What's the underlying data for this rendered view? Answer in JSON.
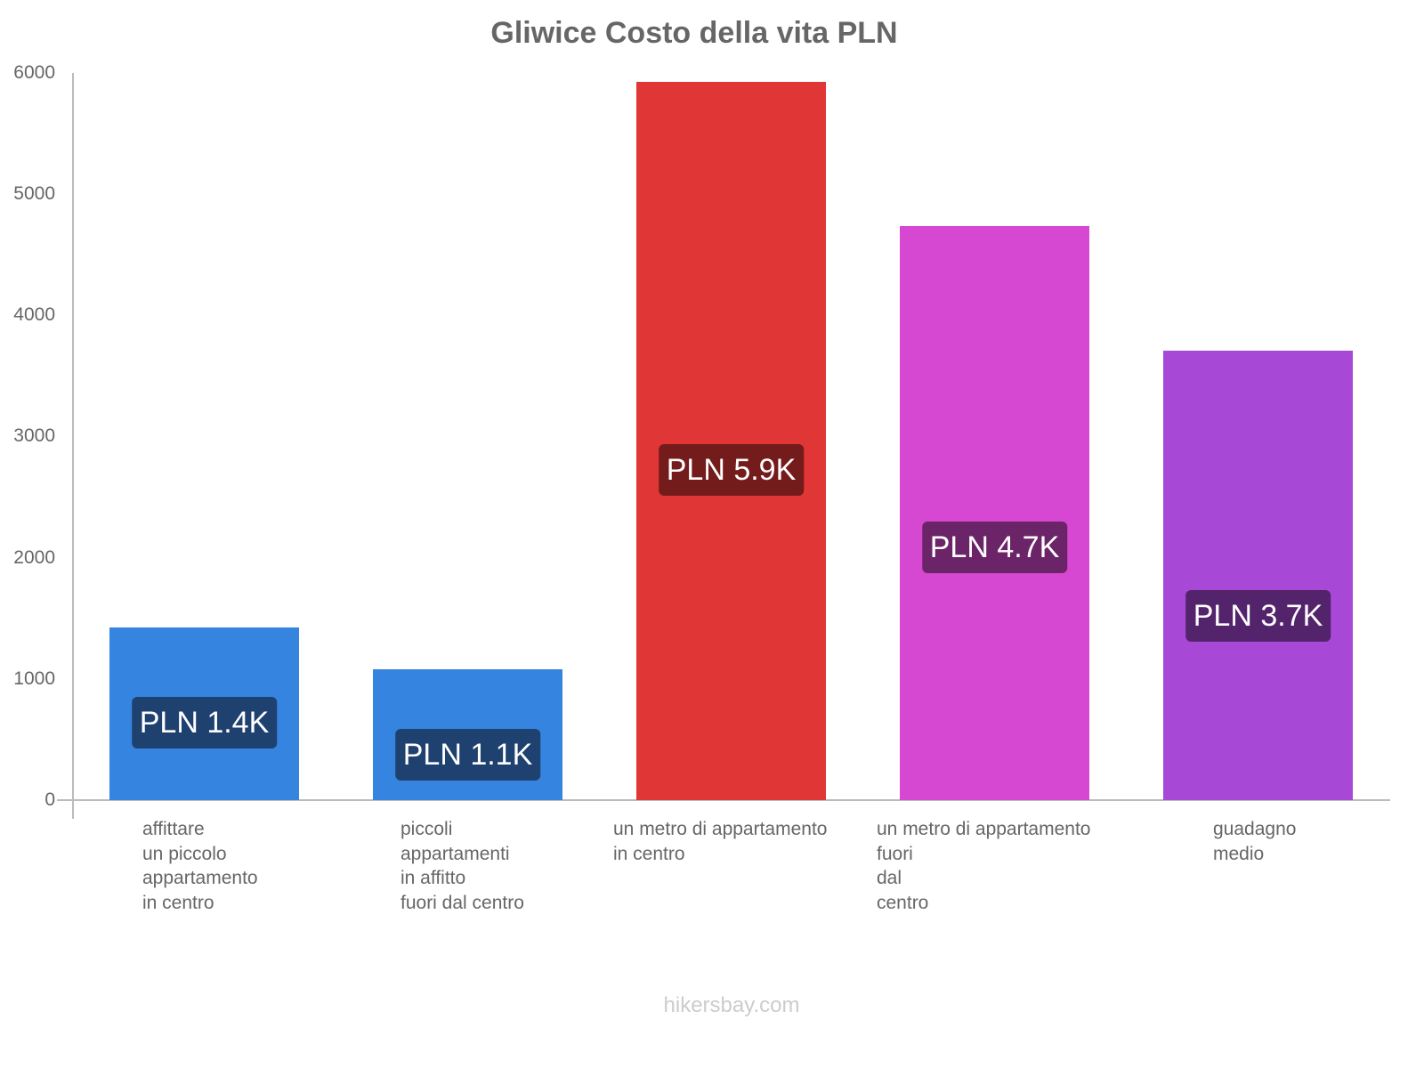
{
  "chart_data": {
    "type": "bar",
    "title": "Gliwice Costo della vita PLN",
    "xlabel": "",
    "ylabel": "",
    "ylim": [
      0,
      6000
    ],
    "yticks": [
      0,
      1000,
      2000,
      3000,
      4000,
      5000,
      6000
    ],
    "grid": false,
    "legend": null,
    "categories": [
      "affittare un piccolo appartamento in centro",
      "piccoli appartamenti in affitto fuori dal centro",
      "un metro di appartamento in centro",
      "un metro di appartamento fuori dal centro",
      "guadagno medio"
    ],
    "category_lines": [
      [
        "affittare",
        "un piccolo",
        "appartamento",
        "in centro"
      ],
      [
        "piccoli",
        "appartamenti",
        "in affitto",
        "fuori dal centro"
      ],
      [
        "un metro di appartamento",
        "in centro"
      ],
      [
        "un metro di appartamento",
        "fuori",
        "dal",
        "centro"
      ],
      [
        "guadagno",
        "medio"
      ]
    ],
    "values": [
      1425,
      1080,
      5925,
      4735,
      3710
    ],
    "data_labels": [
      "PLN 1.4K",
      "PLN 1.1K",
      "PLN 5.9K",
      "PLN 4.7K",
      "PLN 3.7K"
    ],
    "bar_colors": [
      "#3584e0",
      "#3584e0",
      "#e03636",
      "#d648d1",
      "#a748d6"
    ],
    "label_bg_colors": [
      "#1e4170",
      "#1e4170",
      "#741b1b",
      "#6c2468",
      "#53246b"
    ]
  },
  "footer": {
    "watermark": "hikersbay.com"
  }
}
